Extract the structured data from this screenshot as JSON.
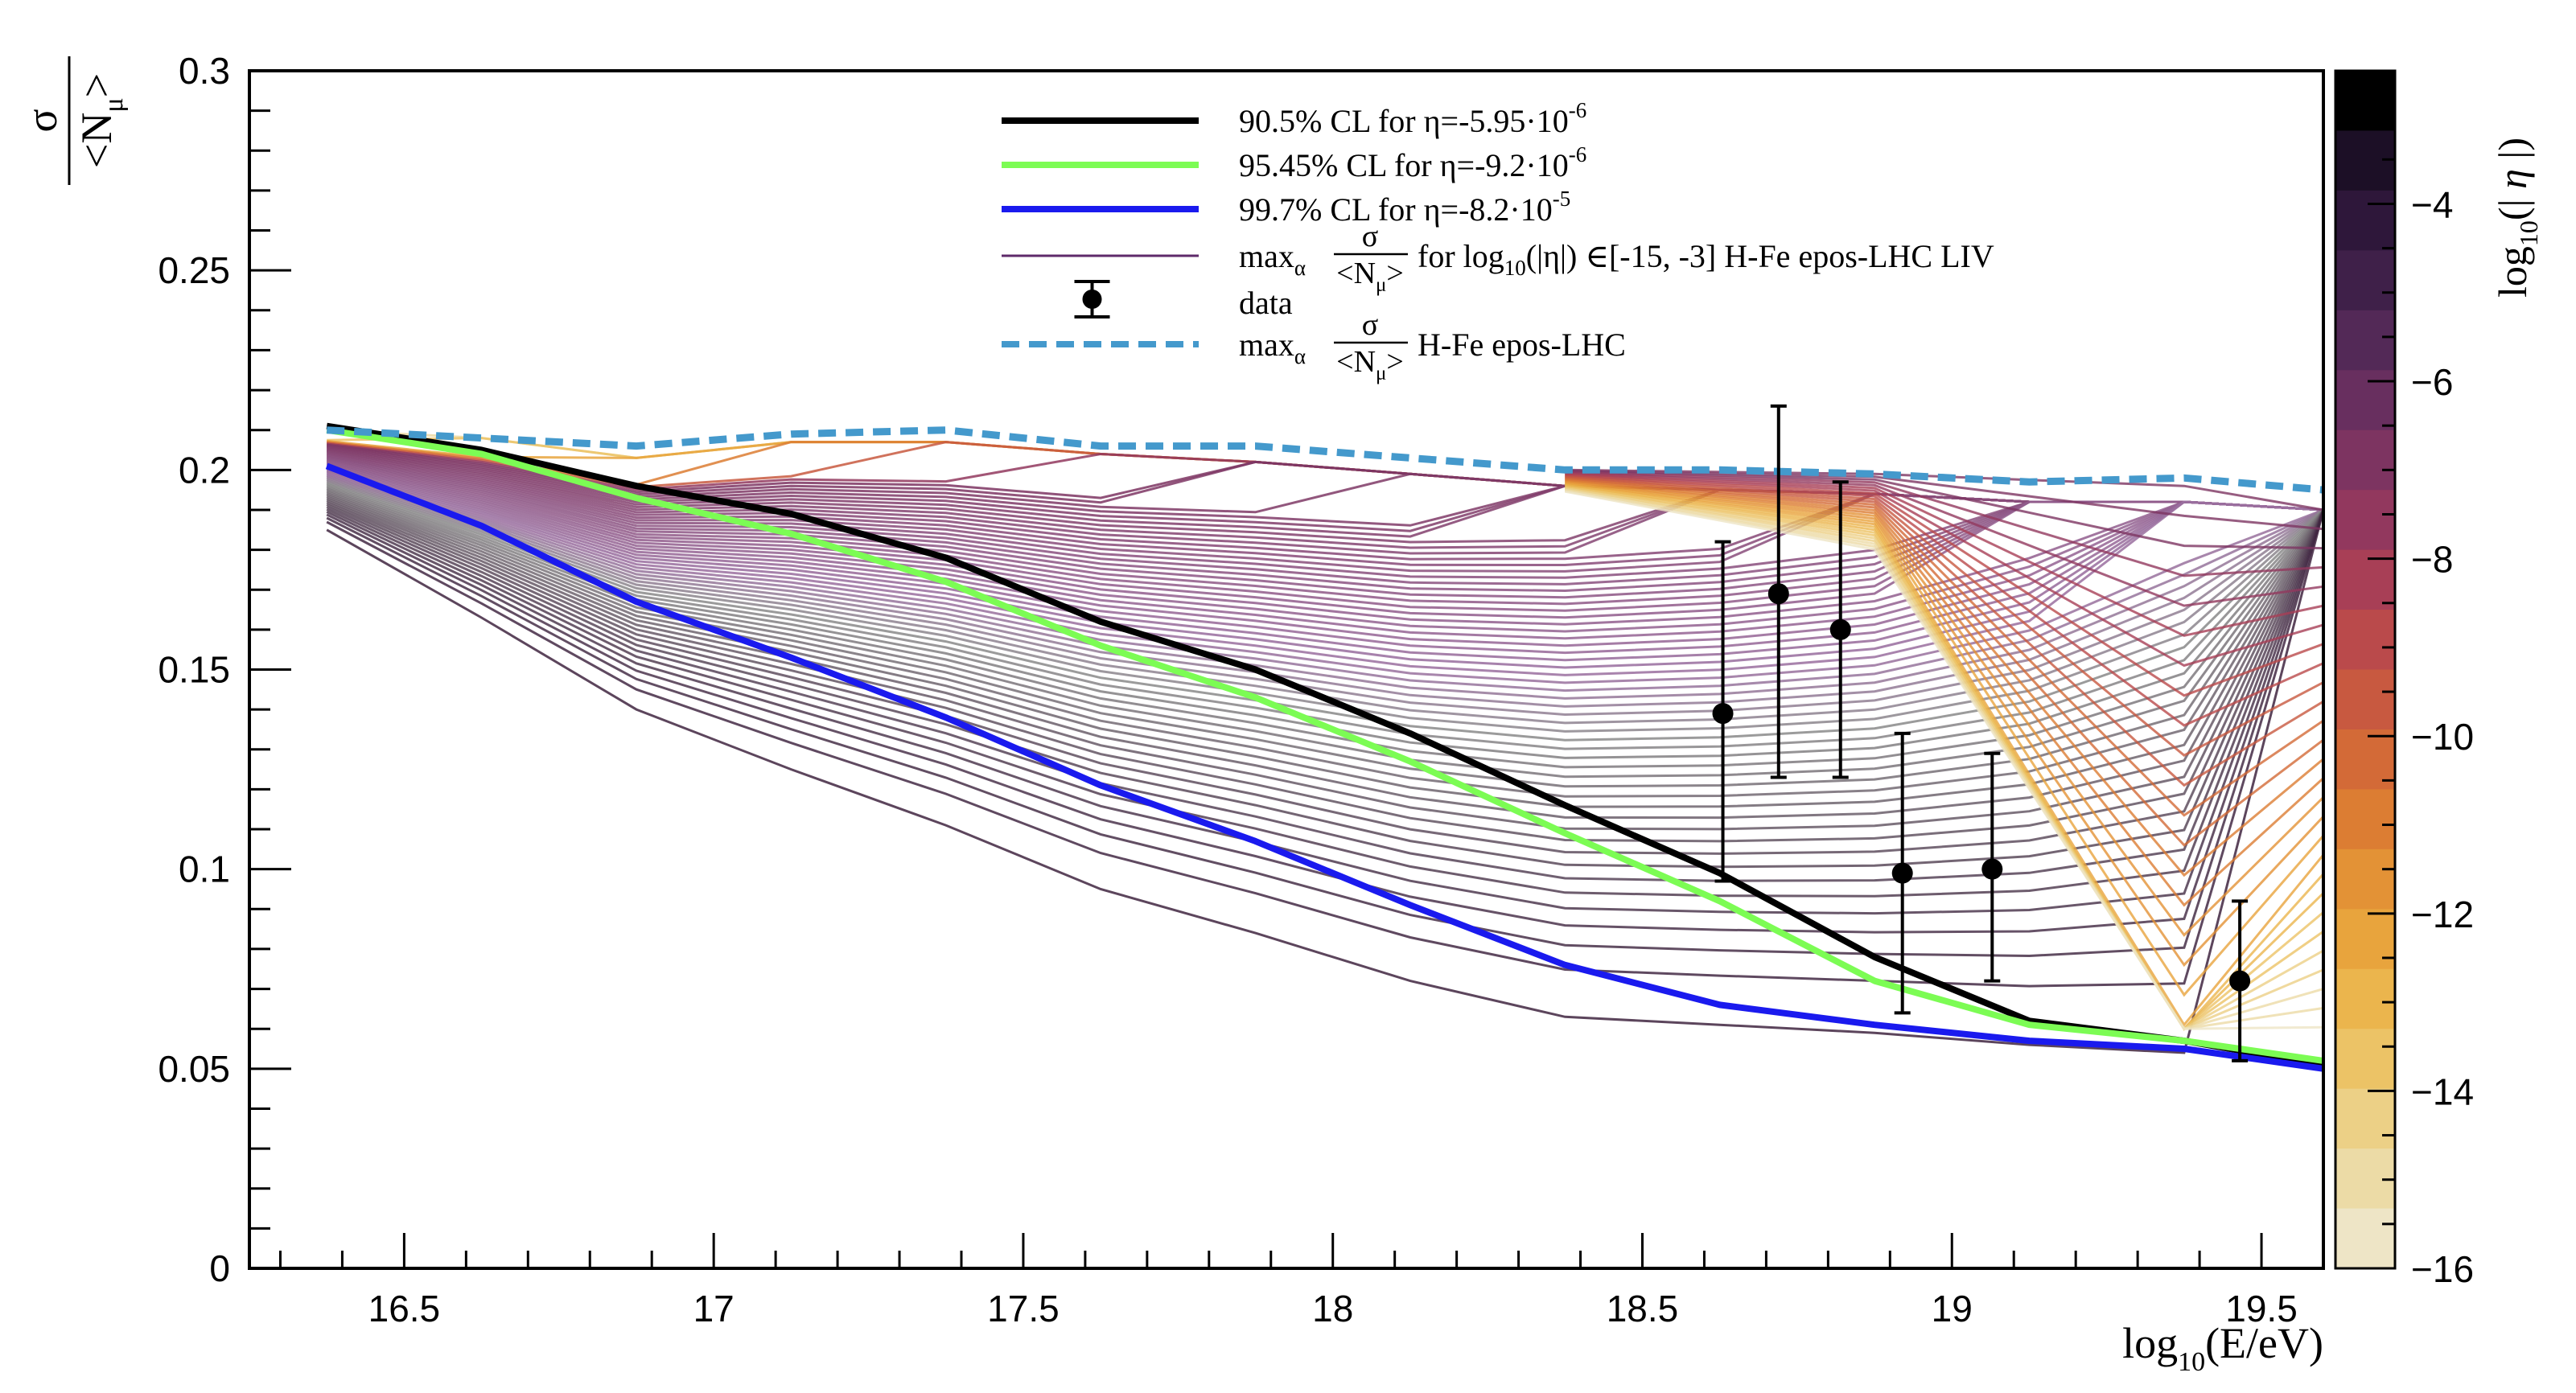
{
  "chart_data": {
    "type": "line",
    "title": "",
    "xlabel": "log10(E/eV)",
    "ylabel": "σ/<Nμ>",
    "xlim": [
      16.25,
      19.6
    ],
    "ylim": [
      0,
      0.3
    ],
    "x_ticks": [
      "16.5",
      "17",
      "17.5",
      "18",
      "18.5",
      "19",
      "19.5"
    ],
    "x_tick_values": [
      16.5,
      17,
      17.5,
      18,
      18.5,
      19,
      19.5
    ],
    "y_ticks": [
      "0",
      "0.05",
      "0.1",
      "0.15",
      "0.2",
      "0.25",
      "0.3"
    ],
    "y_tick_values": [
      0,
      0.05,
      0.1,
      0.15,
      0.2,
      0.25,
      0.3
    ],
    "x": [
      16.375,
      16.625,
      16.875,
      17.125,
      17.375,
      17.625,
      17.875,
      18.125,
      18.375,
      18.625,
      18.875,
      19.125,
      19.375,
      19.6
    ],
    "series": [
      {
        "name": "90.5% CL for η=-5.95·10^-6",
        "color": "#000000",
        "values": [
          0.211,
          0.205,
          0.196,
          0.189,
          0.178,
          0.162,
          0.15,
          0.134,
          0.116,
          0.099,
          0.078,
          0.062,
          0.057,
          0.051
        ]
      },
      {
        "name": "95.45% CL for η=-9.2·10^-6",
        "color": "#7CFC54",
        "values": [
          0.21,
          0.204,
          0.193,
          0.184,
          0.172,
          0.156,
          0.143,
          0.127,
          0.109,
          0.092,
          0.072,
          0.061,
          0.057,
          0.052
        ]
      },
      {
        "name": "99.7% CL for η=-8.2·10^-5",
        "color": "#1a1aee",
        "values": [
          0.201,
          0.186,
          0.167,
          0.153,
          0.138,
          0.121,
          0.107,
          0.091,
          0.076,
          0.066,
          0.061,
          0.057,
          0.055,
          0.05
        ]
      },
      {
        "name": "max_α σ/<Nμ> H-Fe epos-LHC",
        "color": "#4499cc",
        "dashed": true,
        "values": [
          0.21,
          0.208,
          0.206,
          0.209,
          0.21,
          0.206,
          0.206,
          0.203,
          0.2,
          0.2,
          0.199,
          0.197,
          0.198,
          0.195
        ]
      }
    ],
    "band": {
      "name": "max_α σ/<Nμ> for log10(|η|) ∈[-15, -3] H-Fe epos-LHC LIV",
      "upper": [
        0.21,
        0.208,
        0.203,
        0.207,
        0.207,
        0.204,
        0.202,
        0.199,
        0.196,
        0.195,
        0.194,
        0.192,
        0.192,
        0.19
      ],
      "lower": [
        0.185,
        0.163,
        0.14,
        0.125,
        0.111,
        0.095,
        0.084,
        0.072,
        0.063,
        0.061,
        0.059,
        0.056,
        0.054,
        0.053
      ],
      "n_lines": 60
    },
    "data_points": {
      "name": "data",
      "x": [
        18.63,
        18.72,
        18.82,
        18.92,
        19.065,
        19.465
      ],
      "y": [
        0.139,
        0.169,
        0.16,
        0.099,
        0.1,
        0.072
      ],
      "err_low": [
        0.042,
        0.046,
        0.037,
        0.035,
        0.028,
        0.02
      ],
      "err_high": [
        0.043,
        0.047,
        0.037,
        0.035,
        0.029,
        0.02
      ]
    },
    "legend": {
      "placement": "top-center",
      "items": [
        {
          "style": "line",
          "color": "#000000",
          "text": "90.5% CL for  η=-5.95·10",
          "sup": "-6"
        },
        {
          "style": "line",
          "color": "#7CFC54",
          "text": "95.45% CL for  η=-9.2·10",
          "sup": "-6"
        },
        {
          "style": "line",
          "color": "#1a1aee",
          "text": "99.7% CL for  η=-8.2·10",
          "sup": "-5"
        },
        {
          "style": "thin",
          "color": "#5e2a6a",
          "prefix": "max",
          "sub": "α",
          "frac_num": "σ",
          "frac_den": "<N",
          "frac_den_sub": "μ",
          "frac_den_end": ">",
          "text_a": "for log",
          "text_sub": "10",
          "text_b": "(|η|) ∈[-15, -3] H-Fe epos-LHC LIV"
        },
        {
          "style": "marker",
          "color": "#000000",
          "text": "data"
        },
        {
          "style": "dashed",
          "color": "#4499cc",
          "prefix": "max",
          "sub": "α",
          "frac_num": "σ",
          "frac_den": "<N",
          "frac_den_sub": "μ",
          "frac_den_end": ">",
          "text_b": "H-Fe epos-LHC"
        }
      ]
    },
    "colorbar": {
      "label": "log10(|η|)",
      "range": [
        -16,
        -2.5
      ],
      "ticks": [
        "-4",
        "-6",
        "-8",
        "-10",
        "-12",
        "-14",
        "-16"
      ],
      "tick_values": [
        -4,
        -6,
        -8,
        -10,
        -12,
        -14,
        -16
      ],
      "colors": [
        "#000000",
        "#1c0f26",
        "#2e173a",
        "#3f2049",
        "#532957",
        "#682f5f",
        "#7d3461",
        "#92385e",
        "#a83f56",
        "#ba4a4b",
        "#c85940",
        "#d36a37",
        "#dc7d33",
        "#e39236",
        "#e8a43d",
        "#ebb54d",
        "#ecc366",
        "#ecd086",
        "#ecdba6",
        "#eee5c6"
      ]
    }
  }
}
